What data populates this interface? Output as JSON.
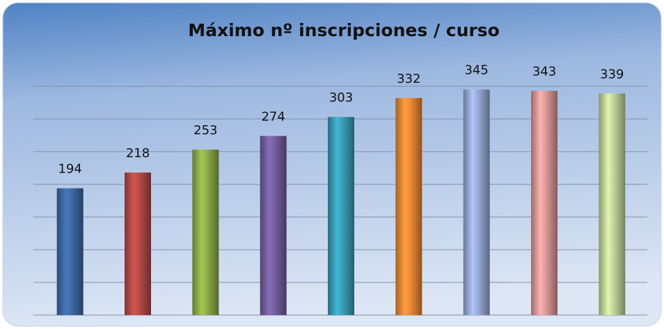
{
  "chart_data": {
    "type": "bar",
    "title": "Máximo nº inscripciones / curso",
    "categories": [
      null,
      null,
      null,
      null,
      null,
      null,
      null,
      null,
      null
    ],
    "values": [
      194,
      218,
      253,
      274,
      303,
      332,
      345,
      343,
      339
    ],
    "colors": [
      "#3f6aa6",
      "#b84a47",
      "#8fae4a",
      "#7560a0",
      "#3a9fb8",
      "#ee8a35",
      "#98acd8",
      "#dd9a9a",
      "#c3d79a"
    ],
    "ylim": [
      0,
      350
    ],
    "yticks": [
      0,
      50,
      100,
      150,
      200,
      250,
      300,
      350
    ],
    "grid": true
  }
}
